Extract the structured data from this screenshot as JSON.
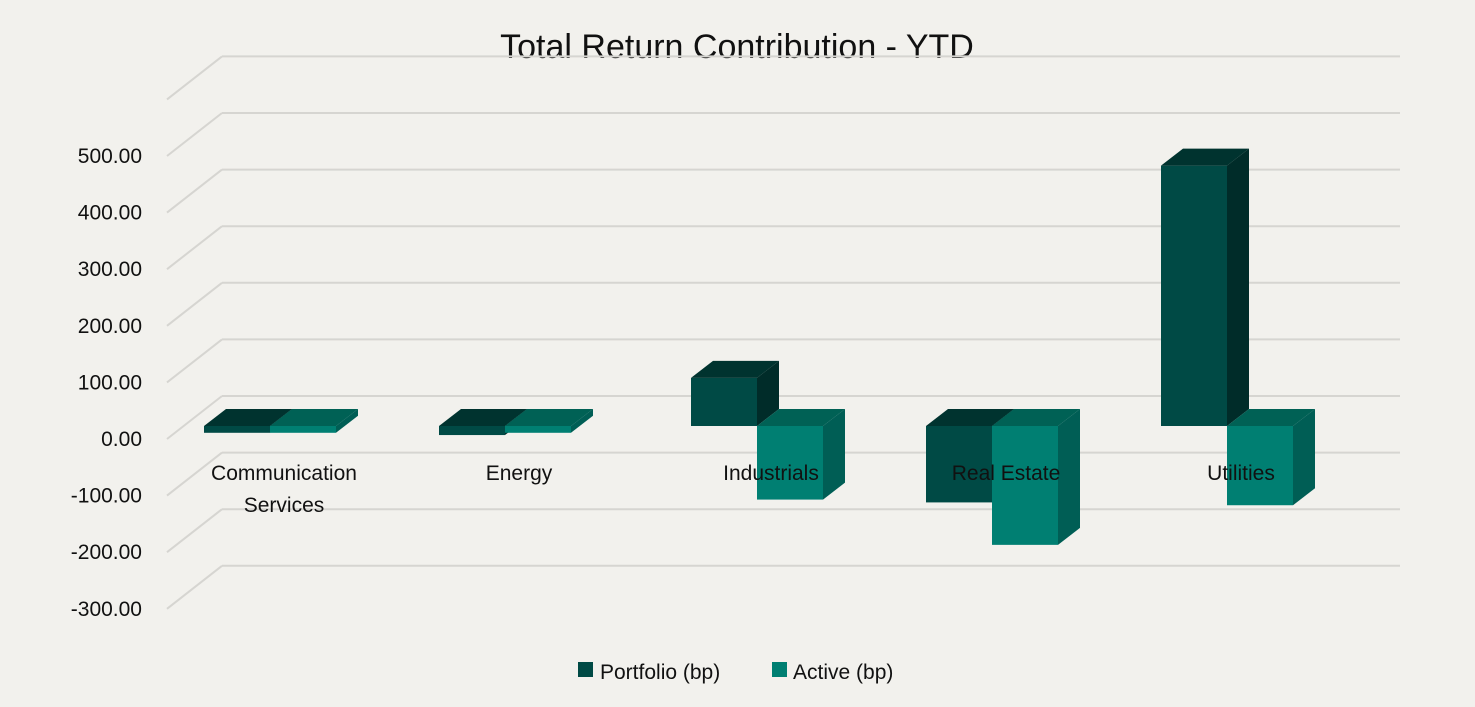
{
  "chart_data": {
    "type": "bar",
    "title": "Total Return Contribution - YTD",
    "xlabel": "",
    "ylabel": "",
    "categories": [
      "Communication Services",
      "Energy",
      "Industrials",
      "Real Estate",
      "Utilities"
    ],
    "category_lines": [
      [
        "Communication",
        "Services"
      ],
      [
        "Energy"
      ],
      [
        "Industrials"
      ],
      [
        "Real Estate"
      ],
      [
        "Utilities"
      ]
    ],
    "series": [
      {
        "name": "Portfolio (bp)",
        "color": "#004a45",
        "top_color": "#00332f",
        "side_color": "#002c29",
        "values": [
          -12,
          -16,
          85,
          -135,
          460
        ]
      },
      {
        "name": "Active (bp)",
        "color": "#007f72",
        "top_color": "#006155",
        "side_color": "#005e55",
        "values": [
          -12,
          -12,
          -130,
          -210,
          -140
        ]
      }
    ],
    "yticks": [
      500,
      400,
      300,
      200,
      100,
      0,
      -100,
      -200,
      -300
    ],
    "ytick_labels": [
      "500.00",
      "400.00",
      "300.00",
      "200.00",
      "100.00",
      "0.00",
      "-100.00",
      "-200.00",
      "-300.00"
    ],
    "ylim": [
      -300,
      500
    ],
    "grid": true,
    "legend_position": "bottom",
    "three_d": true
  }
}
